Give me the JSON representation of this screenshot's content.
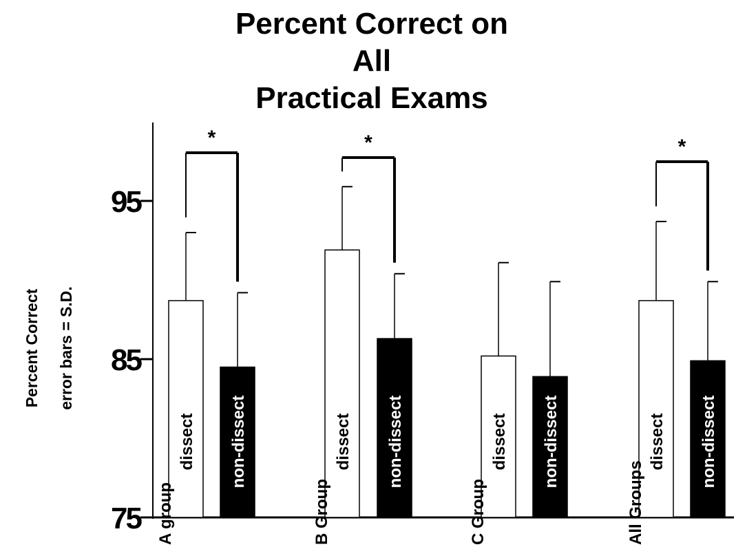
{
  "chart_data": {
    "type": "bar",
    "title": "Percent Correct on All Practical Exams",
    "title_lines": [
      "Percent Correct on All",
      "Practical Exams"
    ],
    "ylabel": "Percent Correct",
    "ylabel_sub": "error bars = S.D.",
    "ylim": [
      75,
      100
    ],
    "yticks": [
      75,
      85,
      95
    ],
    "ytick_labels": [
      "75",
      "85",
      "95"
    ],
    "error_bars": "S.D.",
    "groups": [
      {
        "label": "A group",
        "bars": [
          {
            "label": "dissect",
            "value": 88.7,
            "sd": 4.3,
            "fill": "white"
          },
          {
            "label": "non-dissect",
            "value": 84.5,
            "sd": 4.7,
            "fill": "black"
          }
        ],
        "significant": true,
        "marker": "*"
      },
      {
        "label": "B Group",
        "bars": [
          {
            "label": "dissect",
            "value": 91.9,
            "sd": 4.0,
            "fill": "white"
          },
          {
            "label": "non-dissect",
            "value": 86.3,
            "sd": 4.1,
            "fill": "black"
          }
        ],
        "significant": true,
        "marker": "*"
      },
      {
        "label": "C Group",
        "bars": [
          {
            "label": "dissect",
            "value": 85.2,
            "sd": 5.9,
            "fill": "white"
          },
          {
            "label": "non-dissect",
            "value": 83.9,
            "sd": 6.0,
            "fill": "black"
          }
        ],
        "significant": false,
        "marker": ""
      },
      {
        "label": "All Groups",
        "bars": [
          {
            "label": "dissect",
            "value": 88.7,
            "sd": 5.0,
            "fill": "white"
          },
          {
            "label": "non-dissect",
            "value": 84.9,
            "sd": 5.0,
            "fill": "black"
          }
        ],
        "significant": true,
        "marker": "*"
      }
    ],
    "colors": {
      "dissect_fill": "#ffffff",
      "non_dissect_fill": "#000000",
      "stroke": "#000000"
    }
  }
}
